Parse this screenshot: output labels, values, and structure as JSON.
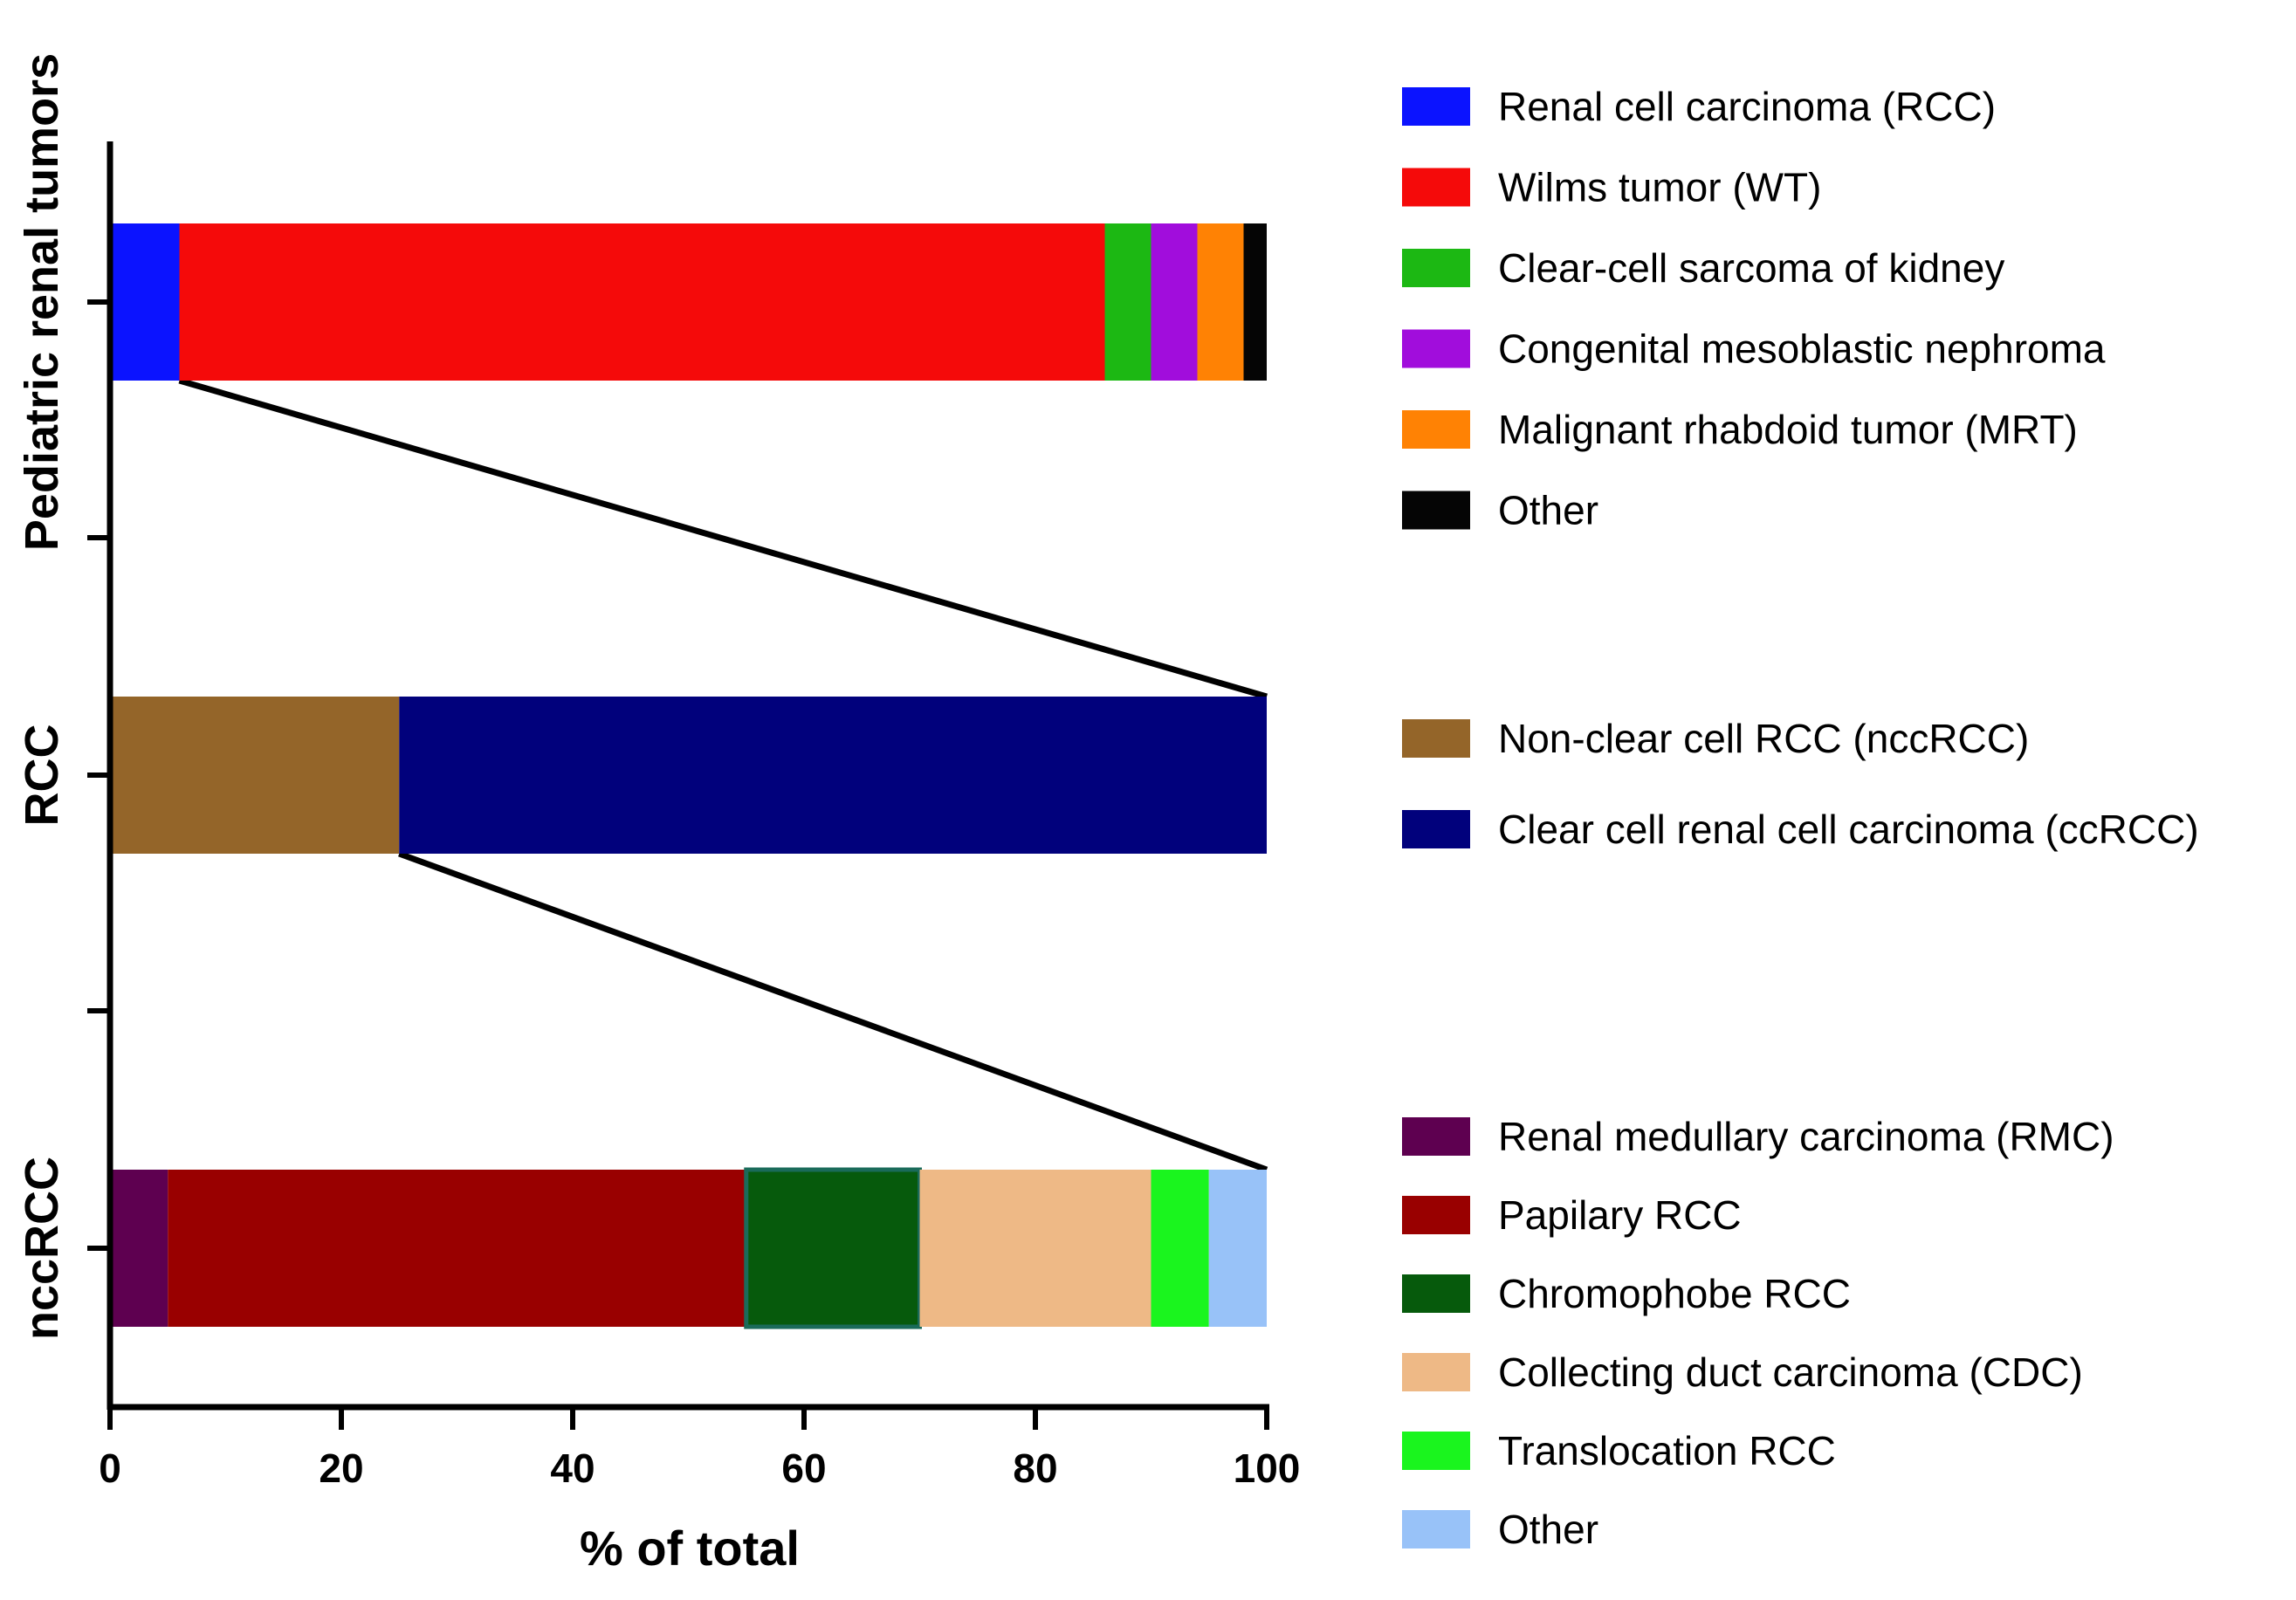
{
  "chart_data": {
    "type": "bar",
    "orientation": "horizontal",
    "stacked": true,
    "xlabel": "% of total",
    "xlim": [
      0,
      100
    ],
    "xticks": [
      0,
      20,
      40,
      60,
      80,
      100
    ],
    "grid": false,
    "legend_position": "right",
    "bars": [
      {
        "category": "Pediatric renal tumors",
        "segments": [
          {
            "name": "Renal cell carcinoma (RCC)",
            "value": 6,
            "color": "#0B13FF"
          },
          {
            "name": "Wilms tumor (WT)",
            "value": 80,
            "color": "#F50A0A"
          },
          {
            "name": "Clear-cell sarcoma of kidney",
            "value": 4,
            "color": "#1CB813"
          },
          {
            "name": "Congenital mesoblastic nephroma",
            "value": 4,
            "color": "#A10DDC"
          },
          {
            "name": "Malignant rhabdoid tumor (MRT)",
            "value": 4,
            "color": "#FF8204"
          },
          {
            "name": "Other",
            "value": 2,
            "color": "#050505"
          }
        ]
      },
      {
        "category": "RCC",
        "segments": [
          {
            "name": "Non-clear cell RCC (nccRCC)",
            "value": 25,
            "color": "#946529"
          },
          {
            "name": "Clear cell renal cell carcinoma (ccRCC)",
            "value": 75,
            "color": "#01017C"
          }
        ]
      },
      {
        "category": "nccRCC",
        "segments": [
          {
            "name": "Renal medullary carcinoma (RMC)",
            "value": 5,
            "color": "#5E0050"
          },
          {
            "name": "Papilary RCC",
            "value": 50,
            "color": "#990000"
          },
          {
            "name": "Chromophobe RCC",
            "value": 15,
            "color": "#065A0C",
            "stroke": "#1A6B5A"
          },
          {
            "name": "Collecting duct carcinoma (CDC)",
            "value": 20,
            "color": "#EEB986"
          },
          {
            "name": "Translocation RCC",
            "value": 5,
            "color": "#1AF51E"
          },
          {
            "name": "Other",
            "value": 5,
            "color": "#98C2F8"
          }
        ]
      }
    ],
    "connectors": [
      {
        "from_bar": 0,
        "from_value": 6,
        "to_bar": 1,
        "to_value": 100
      },
      {
        "from_bar": 1,
        "from_value": 25,
        "to_bar": 2,
        "to_value": 100
      }
    ]
  }
}
